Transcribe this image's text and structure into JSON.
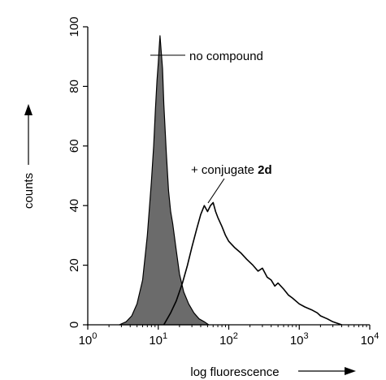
{
  "chart_data": {
    "type": "area",
    "xlabel": "log fluorescence",
    "ylabel": "counts",
    "x_scale": "log",
    "xlim": [
      1,
      10000
    ],
    "ylim": [
      0,
      100
    ],
    "x_ticks": [
      1,
      10,
      100,
      1000,
      10000
    ],
    "x_tick_labels": [
      {
        "base": "10",
        "exp": "0"
      },
      {
        "base": "10",
        "exp": "1"
      },
      {
        "base": "10",
        "exp": "2"
      },
      {
        "base": "10",
        "exp": "3"
      },
      {
        "base": "10",
        "exp": "4"
      }
    ],
    "y_ticks": [
      0,
      20,
      40,
      60,
      80,
      100
    ],
    "y_tick_labels": [
      "0",
      "20",
      "40",
      "60",
      "80",
      "100"
    ],
    "grid": false,
    "series": [
      {
        "name": "no compound",
        "style": "filled",
        "color": "#6b6b6b",
        "x": [
          2.8,
          3.5,
          4.2,
          5,
          6,
          7,
          8,
          8.6,
          9.1,
          9.6,
          10,
          10.3,
          10.6,
          11,
          11.5,
          12,
          13,
          14,
          15,
          16,
          18,
          20,
          23,
          27,
          32,
          38,
          45,
          52
        ],
        "y": [
          0,
          1,
          3,
          7,
          15,
          30,
          48,
          60,
          72,
          82,
          88,
          93,
          97,
          92,
          86,
          74,
          58,
          45,
          38,
          34,
          25,
          17,
          11,
          7,
          4,
          2,
          1,
          0
        ]
      },
      {
        "name": "+ conjugate 2d",
        "style": "outline",
        "color": "#000000",
        "x": [
          12,
          15,
          18,
          22,
          26,
          30,
          35,
          40,
          45,
          50,
          55,
          60,
          65,
          70,
          80,
          90,
          100,
          120,
          150,
          180,
          220,
          260,
          300,
          350,
          400,
          450,
          500,
          600,
          700,
          800,
          1000,
          1200,
          1500,
          1800,
          2000,
          2500,
          3000,
          3500,
          4000
        ],
        "y": [
          0,
          4,
          8,
          14,
          20,
          26,
          32,
          37,
          40,
          38,
          40,
          41,
          38,
          36,
          33,
          30,
          28,
          26,
          24,
          22,
          20,
          18,
          19,
          16,
          15,
          13,
          14,
          12,
          10,
          9,
          7,
          6,
          5,
          4,
          3,
          2,
          1,
          0.5,
          0
        ]
      }
    ],
    "annotations": [
      {
        "text": "no compound",
        "points_to": "peak of no compound histogram"
      },
      {
        "text_prefix": "+ conjugate ",
        "text_bold": "2d",
        "points_to": "peak of conjugate 2d histogram"
      }
    ]
  }
}
